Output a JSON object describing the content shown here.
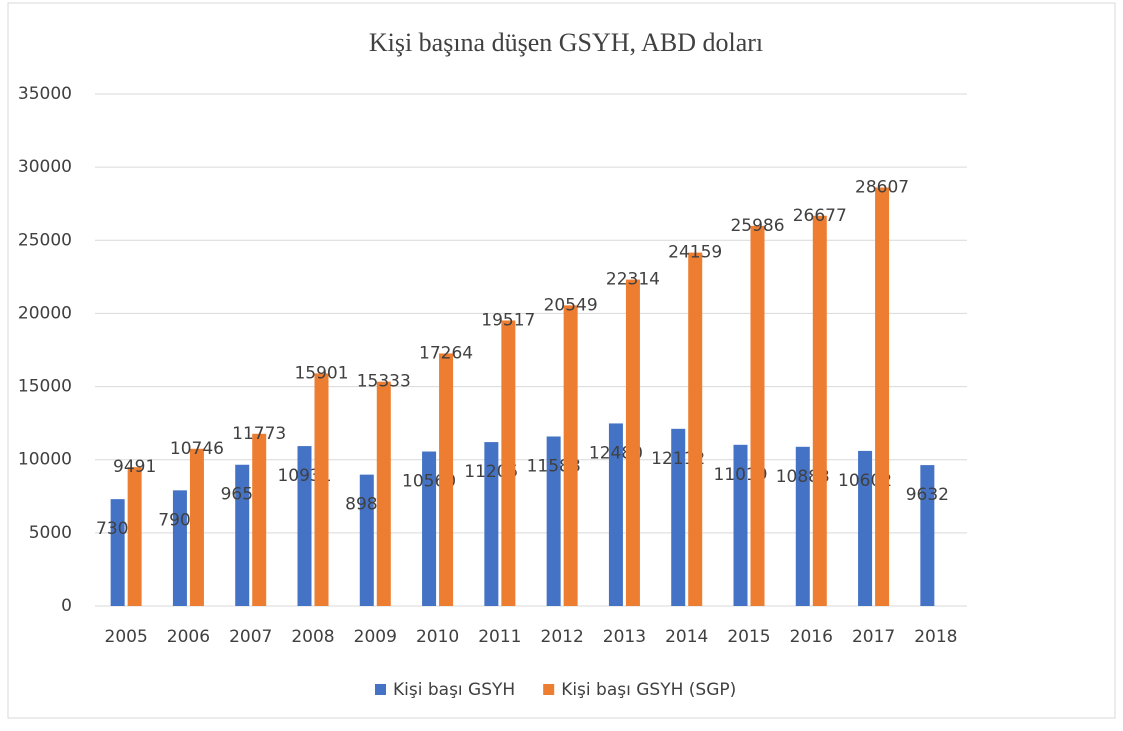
{
  "chart_data": {
    "type": "bar",
    "title": "Kişi başına düşen GSYH, ABD doları",
    "categories": [
      "2005",
      "2006",
      "2007",
      "2008",
      "2009",
      "2010",
      "2011",
      "2012",
      "2013",
      "2014",
      "2015",
      "2016",
      "2017",
      "2018"
    ],
    "series": [
      {
        "name": "Kişi başı GSYH",
        "color": "#4472c4",
        "values": [
          7304,
          7906,
          9656,
          10931,
          8980,
          10560,
          11205,
          11588,
          12480,
          12112,
          11019,
          10883,
          10602,
          9632
        ]
      },
      {
        "name": "Kişi başı GSYH (SGP)",
        "color": "#ed7d31",
        "values": [
          9491,
          10746,
          11773,
          15901,
          15333,
          17264,
          19517,
          20549,
          22314,
          24159,
          25986,
          26677,
          28607,
          null
        ]
      }
    ],
    "ylim": [
      0,
      35000
    ],
    "yticks": [
      0,
      5000,
      10000,
      15000,
      20000,
      25000,
      30000,
      35000
    ],
    "grid": true,
    "legend": "bottom"
  }
}
